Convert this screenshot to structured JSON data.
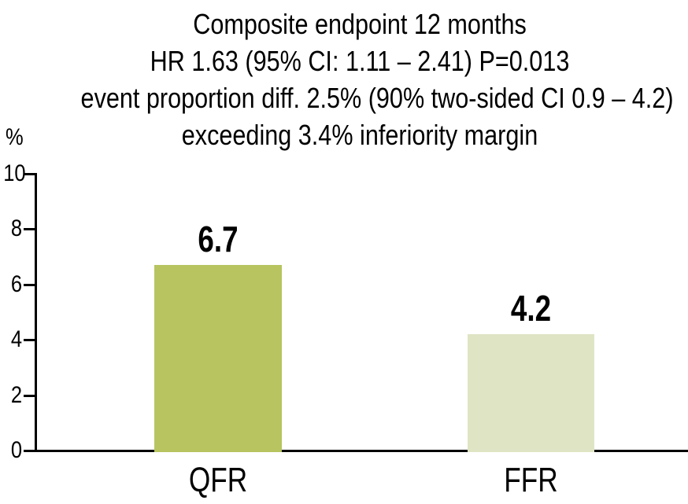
{
  "colors": {
    "background": "#ffffff",
    "axis": "#000000",
    "text": "#000000",
    "qfr_bar": "#b7c45f",
    "ffr_bar": "#dfe5c4"
  },
  "chart_data": {
    "type": "bar",
    "title_lines": [
      "Composite endpoint 12 months",
      "HR 1.63 (95% CI: 1.11 – 2.41) P=0.013",
      "event proportion diff. 2.5% (90% two-sided CI 0.9 – 4.2)",
      "exceeding 3.4% inferiority margin"
    ],
    "y_axis_label": "%",
    "categories": [
      "QFR",
      "FFR"
    ],
    "values": [
      6.7,
      4.2
    ],
    "value_labels": [
      "6.7",
      "4.2"
    ],
    "bar_colors": [
      "#b7c45f",
      "#dfe5c4"
    ],
    "ylim": [
      0,
      10
    ],
    "yticks": [
      0,
      2,
      4,
      6,
      8,
      10
    ],
    "xlabel": "",
    "ylabel": "%",
    "grid": false,
    "legend": null
  }
}
